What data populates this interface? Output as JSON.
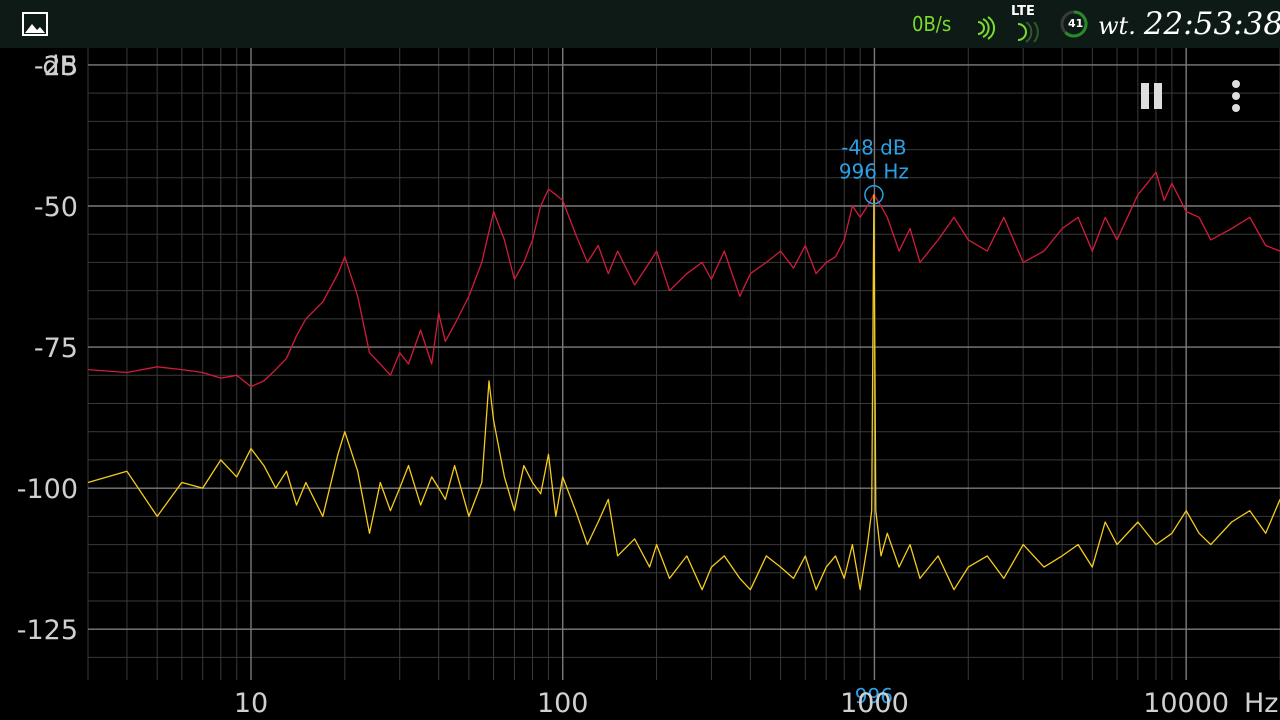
{
  "status_bar": {
    "gallery_icon": "image-icon",
    "net_speed": "0B/s",
    "network_type": "LTE",
    "battery_level": "41",
    "day": "wt.",
    "time": "22:53:38"
  },
  "controls": {
    "pause_icon": "pause-icon",
    "menu_icon": "more-vertical-icon"
  },
  "colors": {
    "background": "#000000",
    "grid": "#3a3a3a",
    "axis_text": "#d0d0d0",
    "peak_hold": "#d11c3c",
    "live": "#f4cc1c",
    "cursor": "#2aa0e6",
    "net_speed": "#7cdc2e"
  },
  "chart_data": {
    "type": "line",
    "ylabel": "dB",
    "xlabel": "Hz",
    "x_scale": "log",
    "xlim": [
      3,
      20000
    ],
    "ylim": [
      -134,
      -22
    ],
    "x_ticks": [
      10,
      100,
      1000,
      10000
    ],
    "x_tick_labels": [
      "10",
      "100",
      "1000",
      "10000"
    ],
    "y_ticks": [
      -25,
      -50,
      -75,
      -100,
      -125
    ],
    "y_tick_labels": [
      "-25",
      "-50",
      "-75",
      "-100",
      "-125"
    ],
    "grid": true,
    "series": [
      {
        "color": "#d11c3c",
        "x": [
          3,
          4,
          5,
          6,
          7,
          8,
          9,
          10,
          11,
          12,
          13,
          14,
          15,
          17,
          19,
          20,
          22,
          24,
          26,
          28,
          30,
          32,
          35,
          38,
          40,
          42,
          45,
          50,
          55,
          60,
          65,
          70,
          75,
          80,
          85,
          90,
          95,
          100,
          110,
          120,
          130,
          140,
          150,
          170,
          190,
          200,
          220,
          250,
          280,
          300,
          330,
          370,
          400,
          450,
          500,
          550,
          600,
          650,
          700,
          750,
          800,
          850,
          900,
          950,
          996,
          1050,
          1100,
          1200,
          1300,
          1400,
          1600,
          1800,
          2000,
          2300,
          2600,
          3000,
          3500,
          4000,
          4500,
          5000,
          5500,
          6000,
          7000,
          7500,
          8000,
          8500,
          9000,
          10000,
          11000,
          12000,
          14000,
          16000,
          18000,
          20000
        ],
        "y": [
          -79,
          -79.5,
          -78.5,
          -79,
          -79.5,
          -80.5,
          -80,
          -82,
          -81,
          -79,
          -77,
          -73,
          -70,
          -67,
          -62,
          -59,
          -66,
          -76,
          -78,
          -80,
          -76,
          -78,
          -72,
          -78,
          -69,
          -74,
          -71,
          -66,
          -60,
          -51,
          -56,
          -63,
          -60,
          -56,
          -50,
          -47,
          -48,
          -49,
          -55,
          -60,
          -57,
          -62,
          -58,
          -64,
          -60,
          -58,
          -65,
          -62,
          -60,
          -63,
          -58,
          -66,
          -62,
          -60,
          -58,
          -61,
          -57,
          -62,
          -60,
          -59,
          -56,
          -50,
          -52,
          -50,
          -48,
          -50,
          -52,
          -58,
          -54,
          -60,
          -56,
          -52,
          -56,
          -58,
          -52,
          -60,
          -58,
          -54,
          -52,
          -58,
          -52,
          -56,
          -48,
          -46,
          -44,
          -49,
          -46,
          -51,
          -52,
          -56,
          -54,
          -52,
          -57,
          -58
        ]
      },
      {
        "color": "#f4cc1c",
        "x": [
          3,
          4,
          5,
          6,
          7,
          8,
          9,
          10,
          11,
          12,
          13,
          14,
          15,
          17,
          19,
          20,
          22,
          24,
          26,
          28,
          30,
          32,
          35,
          38,
          40,
          42,
          45,
          50,
          55,
          58,
          60,
          65,
          70,
          75,
          80,
          85,
          90,
          95,
          100,
          110,
          120,
          130,
          140,
          150,
          170,
          190,
          200,
          220,
          250,
          280,
          300,
          330,
          370,
          400,
          450,
          500,
          550,
          600,
          650,
          700,
          750,
          800,
          850,
          900,
          950,
          980,
          996,
          1010,
          1050,
          1100,
          1200,
          1300,
          1400,
          1600,
          1800,
          2000,
          2300,
          2600,
          3000,
          3500,
          4000,
          4500,
          5000,
          5500,
          6000,
          7000,
          8000,
          9000,
          10000,
          11000,
          12000,
          14000,
          16000,
          18000,
          20000
        ],
        "y": [
          -99,
          -97,
          -105,
          -99,
          -100,
          -95,
          -98,
          -93,
          -96,
          -100,
          -97,
          -103,
          -99,
          -105,
          -94,
          -90,
          -97,
          -108,
          -99,
          -104,
          -100,
          -96,
          -103,
          -98,
          -100,
          -102,
          -96,
          -105,
          -99,
          -81,
          -88,
          -98,
          -104,
          -96,
          -99,
          -101,
          -94,
          -105,
          -98,
          -104,
          -110,
          -106,
          -102,
          -112,
          -109,
          -114,
          -110,
          -116,
          -112,
          -118,
          -114,
          -112,
          -116,
          -118,
          -112,
          -114,
          -116,
          -112,
          -118,
          -114,
          -112,
          -116,
          -110,
          -118,
          -110,
          -104,
          -48,
          -104,
          -112,
          -108,
          -114,
          -110,
          -116,
          -112,
          -118,
          -114,
          -112,
          -116,
          -110,
          -114,
          -112,
          -110,
          -114,
          -106,
          -110,
          -106,
          -110,
          -108,
          -104,
          -108,
          -110,
          -106,
          -104,
          -108,
          -102
        ]
      }
    ],
    "annotations": [
      {
        "x": 996,
        "y": -48,
        "label_db": "-48 dB",
        "label_hz": "996 Hz",
        "axis_label": "996"
      }
    ]
  }
}
